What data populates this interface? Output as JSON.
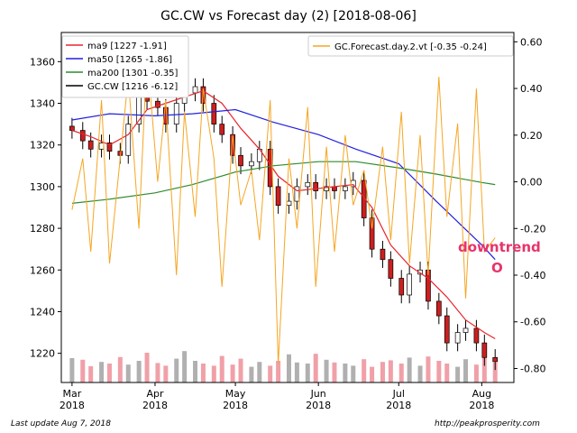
{
  "chart_data": {
    "type": "line",
    "title": "GC.CW vs Forecast day (2)  [2018-08-06]",
    "x_ticks": [
      {
        "label": "Mar\n2018",
        "date": "2018-03-01"
      },
      {
        "label": "Apr\n2018",
        "date": "2018-04-01"
      },
      {
        "label": "May\n2018",
        "date": "2018-05-01"
      },
      {
        "label": "Jun\n2018",
        "date": "2018-06-01"
      },
      {
        "label": "Jul\n2018",
        "date": "2018-07-01"
      },
      {
        "label": "Aug\n2018",
        "date": "2018-08-01"
      }
    ],
    "xlim": [
      "2018-02-25",
      "2018-08-13"
    ],
    "y_left": {
      "ticks": [
        1220,
        1240,
        1260,
        1280,
        1300,
        1320,
        1340,
        1360
      ],
      "ylim": [
        1206,
        1374
      ]
    },
    "y_right": {
      "ticks": [
        "0.60",
        "0.40",
        "0.20",
        "0.00",
        "-0.20",
        "-0.40",
        "-0.60",
        "-0.80"
      ],
      "values": [
        0.6,
        0.4,
        0.2,
        0.0,
        -0.2,
        -0.4,
        -0.6,
        -0.8
      ],
      "ylim": [
        -0.86,
        0.64
      ]
    },
    "legend_left": [
      "ma9 [1227 -1.91]",
      "ma50 [1265 -1.86]",
      "ma200 [1301 -0.35]",
      "GC.CW [1216 -6.12]"
    ],
    "legend_right": [
      "GC.Forecast.day.2.vt [-0.35 -0.24]"
    ],
    "series": [
      {
        "name": "GC.CW",
        "color": "#000000",
        "points": [
          [
            "2018-03-01",
            1327
          ],
          [
            "2018-03-05",
            1322
          ],
          [
            "2018-03-08",
            1318
          ],
          [
            "2018-03-12",
            1321
          ],
          [
            "2018-03-15",
            1317
          ],
          [
            "2018-03-19",
            1315
          ],
          [
            "2018-03-22",
            1330
          ],
          [
            "2018-03-26",
            1348
          ],
          [
            "2018-03-29",
            1341
          ],
          [
            "2018-04-02",
            1338
          ],
          [
            "2018-04-05",
            1330
          ],
          [
            "2018-04-09",
            1340
          ],
          [
            "2018-04-12",
            1345
          ],
          [
            "2018-04-16",
            1348
          ],
          [
            "2018-04-19",
            1340
          ],
          [
            "2018-04-23",
            1330
          ],
          [
            "2018-04-26",
            1325
          ],
          [
            "2018-04-30",
            1315
          ],
          [
            "2018-05-03",
            1310
          ],
          [
            "2018-05-07",
            1312
          ],
          [
            "2018-05-10",
            1318
          ],
          [
            "2018-05-14",
            1300
          ],
          [
            "2018-05-17",
            1291
          ],
          [
            "2018-05-21",
            1293
          ],
          [
            "2018-05-24",
            1300
          ],
          [
            "2018-05-28",
            1302
          ],
          [
            "2018-05-31",
            1298
          ],
          [
            "2018-06-04",
            1300
          ],
          [
            "2018-06-07",
            1298
          ],
          [
            "2018-06-11",
            1300
          ],
          [
            "2018-06-14",
            1303
          ],
          [
            "2018-06-18",
            1285
          ],
          [
            "2018-06-21",
            1270
          ],
          [
            "2018-06-25",
            1265
          ],
          [
            "2018-06-28",
            1256
          ],
          [
            "2018-07-02",
            1248
          ],
          [
            "2018-07-05",
            1258
          ],
          [
            "2018-07-09",
            1260
          ],
          [
            "2018-07-12",
            1245
          ],
          [
            "2018-07-16",
            1238
          ],
          [
            "2018-07-19",
            1225
          ],
          [
            "2018-07-23",
            1230
          ],
          [
            "2018-07-26",
            1232
          ],
          [
            "2018-07-30",
            1225
          ],
          [
            "2018-08-02",
            1218
          ],
          [
            "2018-08-06",
            1216
          ]
        ]
      },
      {
        "name": "ma9",
        "color": "#e8262c",
        "points": [
          [
            "2018-03-01",
            1327
          ],
          [
            "2018-03-08",
            1324
          ],
          [
            "2018-03-15",
            1320
          ],
          [
            "2018-03-22",
            1325
          ],
          [
            "2018-03-29",
            1337
          ],
          [
            "2018-04-05",
            1340
          ],
          [
            "2018-04-12",
            1343
          ],
          [
            "2018-04-19",
            1346
          ],
          [
            "2018-04-26",
            1340
          ],
          [
            "2018-05-03",
            1328
          ],
          [
            "2018-05-10",
            1318
          ],
          [
            "2018-05-17",
            1305
          ],
          [
            "2018-05-24",
            1298
          ],
          [
            "2018-05-31",
            1299
          ],
          [
            "2018-06-07",
            1300
          ],
          [
            "2018-06-14",
            1301
          ],
          [
            "2018-06-21",
            1290
          ],
          [
            "2018-06-28",
            1272
          ],
          [
            "2018-07-05",
            1262
          ],
          [
            "2018-07-12",
            1256
          ],
          [
            "2018-07-19",
            1247
          ],
          [
            "2018-07-26",
            1236
          ],
          [
            "2018-08-02",
            1230
          ],
          [
            "2018-08-06",
            1227
          ]
        ]
      },
      {
        "name": "ma50",
        "color": "#2020e0",
        "points": [
          [
            "2018-03-01",
            1332
          ],
          [
            "2018-03-15",
            1335
          ],
          [
            "2018-04-01",
            1334
          ],
          [
            "2018-04-15",
            1335
          ],
          [
            "2018-05-01",
            1337
          ],
          [
            "2018-05-15",
            1331
          ],
          [
            "2018-06-01",
            1325
          ],
          [
            "2018-06-15",
            1318
          ],
          [
            "2018-07-01",
            1311
          ],
          [
            "2018-07-15",
            1293
          ],
          [
            "2018-08-01",
            1272
          ],
          [
            "2018-08-06",
            1265
          ]
        ]
      },
      {
        "name": "ma200",
        "color": "#2e8b2e",
        "points": [
          [
            "2018-03-01",
            1292
          ],
          [
            "2018-03-15",
            1294
          ],
          [
            "2018-04-01",
            1297
          ],
          [
            "2018-04-15",
            1301
          ],
          [
            "2018-05-01",
            1307
          ],
          [
            "2018-05-15",
            1310
          ],
          [
            "2018-06-01",
            1312
          ],
          [
            "2018-06-15",
            1312
          ],
          [
            "2018-07-01",
            1309
          ],
          [
            "2018-07-15",
            1306
          ],
          [
            "2018-08-01",
            1302
          ],
          [
            "2018-08-06",
            1301
          ]
        ]
      },
      {
        "name": "GC.Forecast.day.2.vt",
        "color": "#f5a623",
        "axis": "right",
        "points": [
          [
            "2018-03-01",
            -0.12
          ],
          [
            "2018-03-05",
            0.1
          ],
          [
            "2018-03-08",
            -0.3
          ],
          [
            "2018-03-12",
            0.35
          ],
          [
            "2018-03-15",
            -0.35
          ],
          [
            "2018-03-19",
            0.1
          ],
          [
            "2018-03-22",
            0.45
          ],
          [
            "2018-03-26",
            -0.2
          ],
          [
            "2018-03-29",
            0.55
          ],
          [
            "2018-04-02",
            0.0
          ],
          [
            "2018-04-05",
            0.35
          ],
          [
            "2018-04-09",
            -0.4
          ],
          [
            "2018-04-12",
            0.3
          ],
          [
            "2018-04-16",
            -0.15
          ],
          [
            "2018-04-19",
            0.4
          ],
          [
            "2018-04-23",
            0.1
          ],
          [
            "2018-04-26",
            -0.45
          ],
          [
            "2018-04-30",
            0.2
          ],
          [
            "2018-05-03",
            -0.1
          ],
          [
            "2018-05-07",
            0.05
          ],
          [
            "2018-05-10",
            -0.25
          ],
          [
            "2018-05-14",
            0.35
          ],
          [
            "2018-05-17",
            -0.78
          ],
          [
            "2018-05-21",
            0.1
          ],
          [
            "2018-05-24",
            -0.2
          ],
          [
            "2018-05-28",
            0.32
          ],
          [
            "2018-05-31",
            -0.45
          ],
          [
            "2018-06-04",
            0.15
          ],
          [
            "2018-06-07",
            -0.3
          ],
          [
            "2018-06-11",
            0.2
          ],
          [
            "2018-06-14",
            -0.1
          ],
          [
            "2018-06-18",
            0.05
          ],
          [
            "2018-06-21",
            -0.2
          ],
          [
            "2018-06-25",
            0.15
          ],
          [
            "2018-06-28",
            -0.25
          ],
          [
            "2018-07-02",
            0.3
          ],
          [
            "2018-07-05",
            -0.35
          ],
          [
            "2018-07-09",
            0.2
          ],
          [
            "2018-07-12",
            -0.4
          ],
          [
            "2018-07-16",
            0.45
          ],
          [
            "2018-07-19",
            -0.15
          ],
          [
            "2018-07-23",
            0.25
          ],
          [
            "2018-07-26",
            -0.5
          ],
          [
            "2018-07-30",
            0.4
          ],
          [
            "2018-08-02",
            -0.3
          ],
          [
            "2018-08-06",
            -0.24
          ]
        ]
      }
    ],
    "volume_bars": [
      45,
      42,
      30,
      38,
      35,
      47,
      33,
      40,
      55,
      36,
      31,
      44,
      58,
      40,
      35,
      31,
      49,
      33,
      44,
      29,
      38,
      31,
      40,
      52,
      37,
      35,
      53,
      42,
      37,
      35,
      31,
      43,
      29,
      38,
      41,
      35,
      46,
      31,
      48,
      40,
      35,
      29,
      43,
      33,
      46,
      37
    ],
    "annotation": {
      "label": "downtrend",
      "marker": "O"
    },
    "grid": false,
    "legend_placement": "top-left, top-right"
  },
  "footer": {
    "left": "Last update Aug  7, 2018",
    "right": "http://peakprosperity.com"
  },
  "colors": {
    "up": "#ffffff",
    "down": "#cc1f1f",
    "vol_up": "#b0b0b0",
    "vol_down": "#f0a0a8",
    "axes_bg": "#ffffff"
  }
}
